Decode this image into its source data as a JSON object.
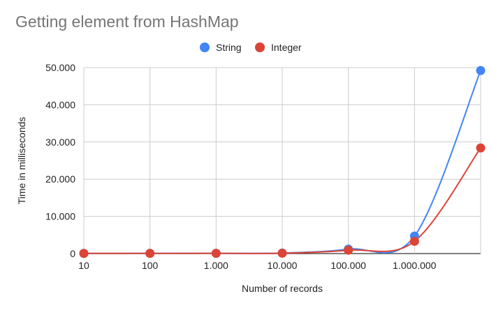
{
  "chart_data": {
    "type": "line",
    "title": "Getting element from HashMap",
    "xlabel": "Number of records",
    "ylabel": "Time in milliseconds",
    "categories": [
      "10",
      "100",
      "1.000",
      "10.000",
      "100.000",
      "1.000.000",
      ""
    ],
    "yticks": [
      "0",
      "10.000",
      "20.000",
      "30.000",
      "40.000",
      "50.000"
    ],
    "ylim": [
      0,
      50000
    ],
    "grid": true,
    "legend_position": "top",
    "series": [
      {
        "name": "String",
        "color": "#4285F4",
        "values": [
          50,
          60,
          70,
          150,
          1200,
          4700,
          49200
        ]
      },
      {
        "name": "Integer",
        "color": "#DB4437",
        "values": [
          40,
          50,
          60,
          100,
          900,
          3300,
          28400
        ]
      }
    ]
  }
}
